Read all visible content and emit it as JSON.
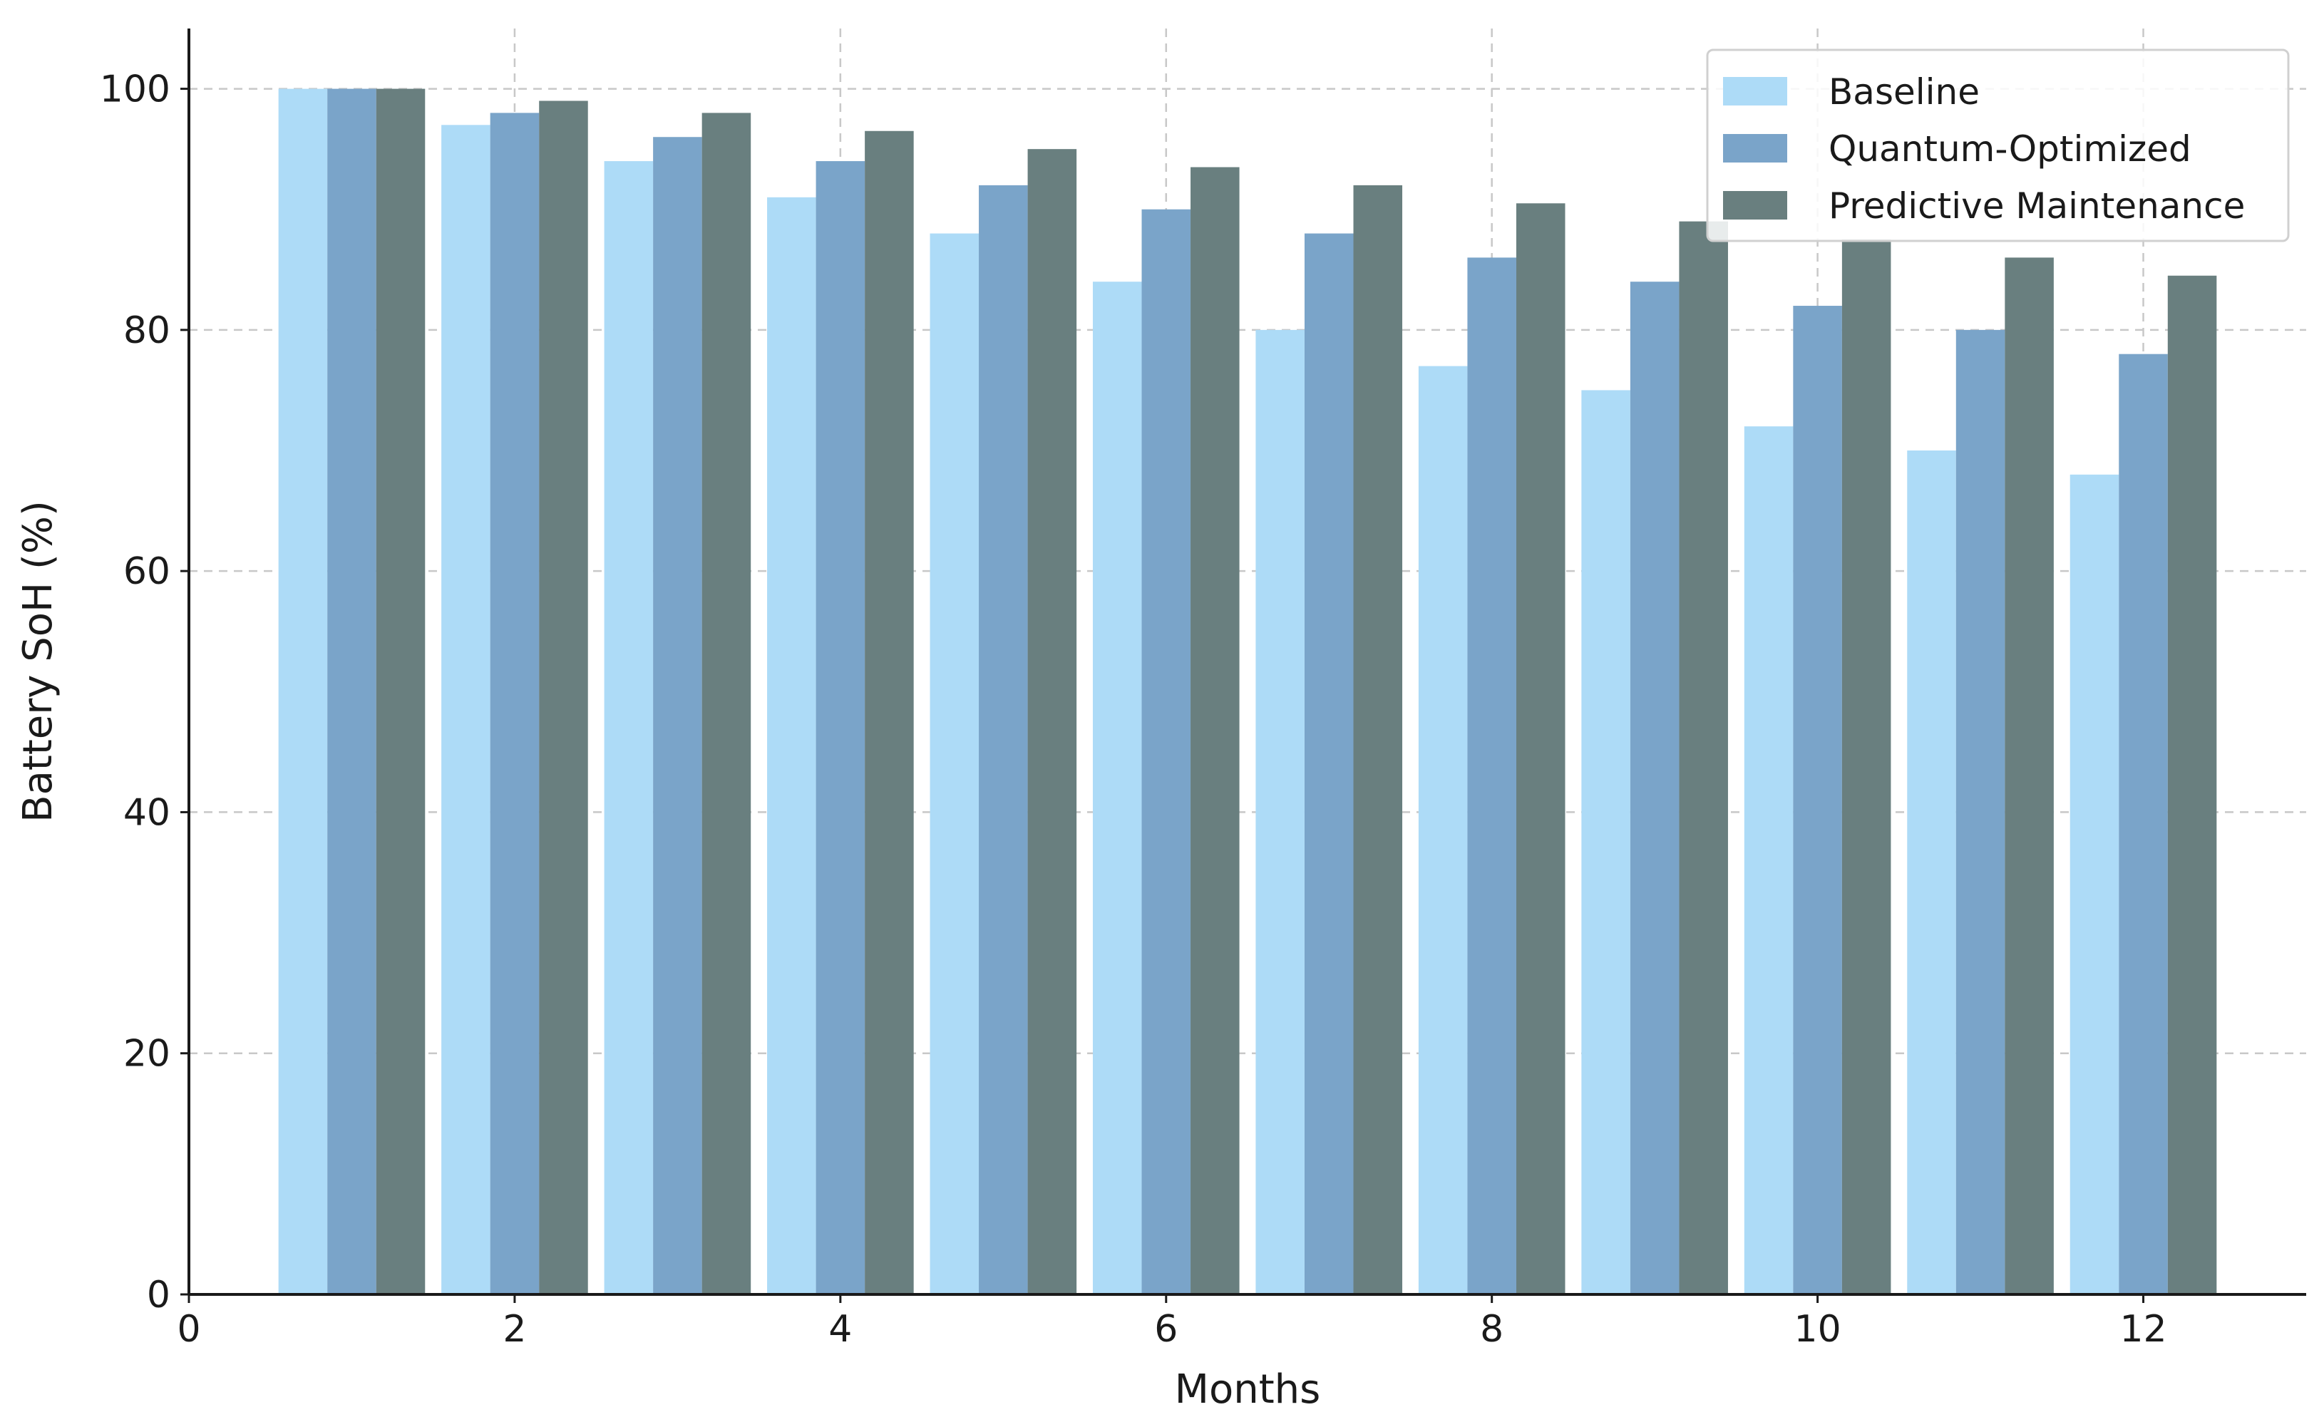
{
  "chart_data": {
    "type": "bar",
    "title": "",
    "xlabel": "Months",
    "ylabel": "Battery SoH (%)",
    "x": [
      1,
      2,
      3,
      4,
      5,
      6,
      7,
      8,
      9,
      10,
      11,
      12
    ],
    "xlim": [
      0,
      13
    ],
    "ylim": [
      0,
      105
    ],
    "x_ticks": [
      0,
      2,
      4,
      6,
      8,
      10,
      12
    ],
    "y_ticks": [
      0,
      20,
      40,
      60,
      80,
      100
    ],
    "grid": true,
    "legend_position": "top-right",
    "series": [
      {
        "name": "Baseline",
        "color": "#addbf7",
        "values": [
          100,
          97,
          94,
          91,
          88,
          84,
          80,
          77,
          75,
          72,
          70,
          68
        ]
      },
      {
        "name": "Quantum-Optimized",
        "color": "#7aa4c9",
        "values": [
          100,
          98,
          96,
          94,
          92,
          90,
          88,
          86,
          84,
          82,
          80,
          78
        ]
      },
      {
        "name": "Predictive Maintenance",
        "color": "#697f7f",
        "values": [
          100,
          99,
          98,
          96.5,
          95,
          93.5,
          92,
          90.5,
          89,
          87.5,
          86,
          84.5
        ]
      }
    ]
  }
}
